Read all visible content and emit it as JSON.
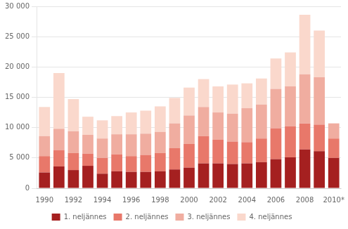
{
  "chart_data": {
    "type": "bar",
    "stacked": true,
    "categories": [
      "1990",
      null,
      "1992",
      null,
      "1994",
      null,
      "1996",
      null,
      "1998",
      null,
      "2000",
      null,
      "2002",
      null,
      "2004",
      null,
      "2006",
      null,
      "2008",
      null,
      "2010*"
    ],
    "series": [
      {
        "name": "1. neljännes",
        "color": "#A52020",
        "values": [
          2600,
          3600,
          3000,
          3700,
          2400,
          2800,
          2700,
          2700,
          2800,
          3100,
          3400,
          4100,
          4100,
          4000,
          4100,
          4300,
          4800,
          5100,
          6400,
          6100,
          5000
        ]
      },
      {
        "name": "2. neljännes",
        "color": "#E8786A",
        "values": [
          2700,
          2700,
          2800,
          2000,
          2600,
          2800,
          2600,
          2800,
          3000,
          3500,
          3900,
          4500,
          3900,
          3700,
          3500,
          3900,
          5100,
          5100,
          4300,
          4400,
          3200
        ]
      },
      {
        "name": "3. neljännes",
        "color": "#F0ADA0",
        "values": [
          3300,
          3500,
          3600,
          3100,
          3200,
          3300,
          3600,
          3500,
          3500,
          4100,
          4700,
          4800,
          4500,
          4600,
          5600,
          5600,
          6500,
          6600,
          8100,
          7800,
          2500
        ]
      },
      {
        "name": "4. neljännes",
        "color": "#FAD8CC",
        "values": [
          4800,
          9200,
          5300,
          3000,
          3000,
          3000,
          3600,
          3800,
          4200,
          4200,
          4600,
          4600,
          4300,
          4800,
          4100,
          4300,
          5000,
          5600,
          9800,
          7700,
          0
        ]
      }
    ],
    "ylim": [
      0,
      30000
    ],
    "yticks": [
      0,
      {
        "value": 5000,
        "label": "5 000"
      },
      {
        "value": 10000,
        "label": "10 000"
      },
      {
        "value": 15000,
        "label": "15 000"
      },
      {
        "value": 20000,
        "label": "20 000"
      },
      {
        "value": 25000,
        "label": "25 000"
      },
      {
        "value": 30000,
        "label": "30 000"
      }
    ],
    "grid": true,
    "legend": "bottom"
  }
}
